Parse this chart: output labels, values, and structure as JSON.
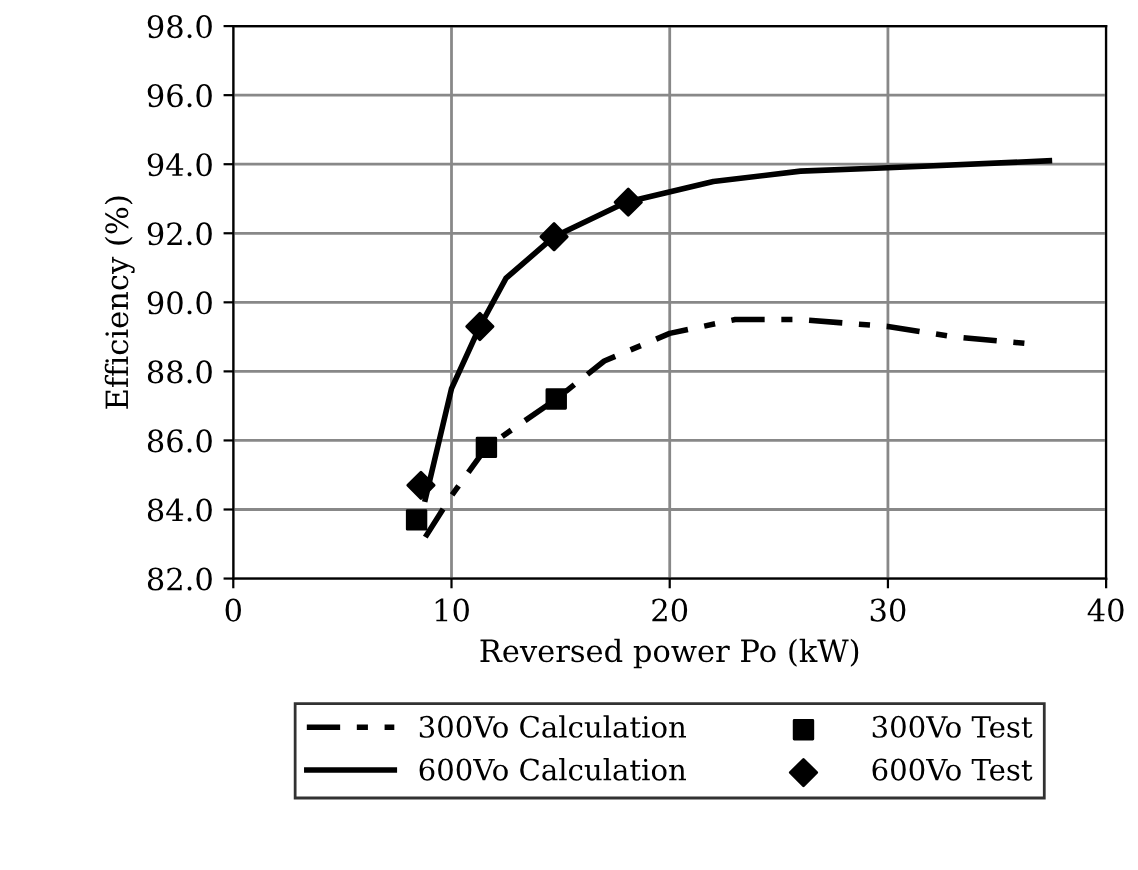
{
  "chart_data": {
    "type": "line",
    "xlabel": "Reversed power Po (kW)",
    "ylabel": "Efficiency (%)",
    "xlim": [
      0,
      40
    ],
    "xticks": [
      0,
      10,
      20,
      30,
      40
    ],
    "ylim": [
      82,
      98
    ],
    "yticks": [
      {
        "value": 82,
        "label": "82.0"
      },
      {
        "value": 84,
        "label": "84.0"
      },
      {
        "value": 86,
        "label": "86.0"
      },
      {
        "value": 88,
        "label": "88.0"
      },
      {
        "value": 90,
        "label": "90.0"
      },
      {
        "value": 92,
        "label": "92.0"
      },
      {
        "value": 94,
        "label": "94.0"
      },
      {
        "value": 96,
        "label": "96.0"
      },
      {
        "value": 98,
        "label": "98.0"
      }
    ],
    "grid": true,
    "legend": "bottom",
    "series": [
      {
        "name": "300Vo Calculation",
        "line_style": "dashed",
        "marker": "none",
        "color": "#000000",
        "x": [
          8.8,
          10,
          11.6,
          14.8,
          17,
          20,
          23,
          26,
          30,
          33,
          36.5
        ],
        "values": [
          83.2,
          84.4,
          85.8,
          87.2,
          88.3,
          89.1,
          89.5,
          89.5,
          89.3,
          89.0,
          88.8
        ]
      },
      {
        "name": "300Vo Test",
        "type": "scatter",
        "marker": "square",
        "color": "#000000",
        "x": [
          8.4,
          11.6,
          14.8
        ],
        "values": [
          83.7,
          85.8,
          87.2
        ]
      },
      {
        "name": "600Vo Calculation",
        "line_style": "solid",
        "marker": "none",
        "color": "#000000",
        "x": [
          8.8,
          10,
          11.3,
          12.5,
          14.7,
          18,
          22,
          26,
          30,
          37.4
        ],
        "values": [
          84.3,
          87.5,
          89.3,
          90.7,
          91.9,
          92.9,
          93.5,
          93.8,
          93.9,
          94.1
        ]
      },
      {
        "name": "600Vo Test",
        "type": "scatter",
        "marker": "diamond",
        "color": "#000000",
        "x": [
          8.6,
          11.3,
          14.7,
          18.1
        ],
        "values": [
          84.7,
          89.3,
          91.9,
          92.9
        ]
      }
    ]
  }
}
